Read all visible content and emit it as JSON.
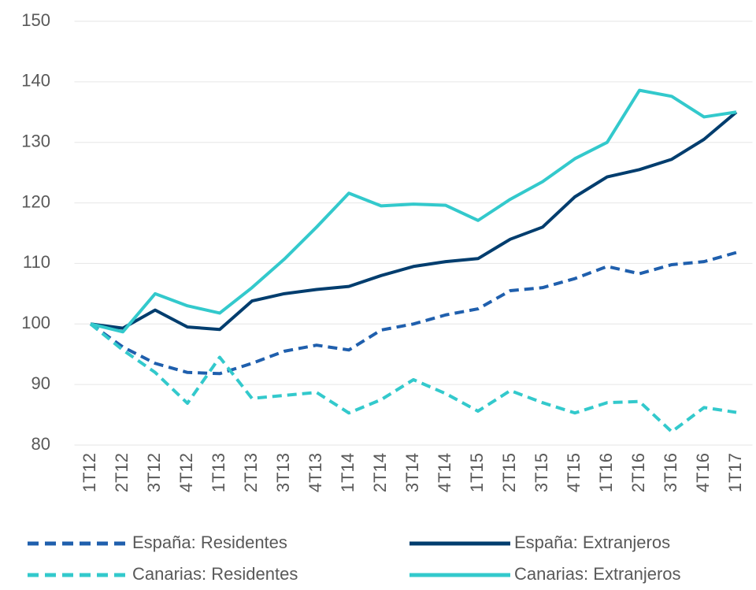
{
  "chart_data": {
    "type": "line",
    "categories": [
      "1T12",
      "2T12",
      "3T12",
      "4T12",
      "1T13",
      "2T13",
      "3T13",
      "4T13",
      "1T14",
      "2T14",
      "3T14",
      "4T14",
      "1T15",
      "2T15",
      "3T15",
      "4T15",
      "1T16",
      "2T16",
      "3T16",
      "4T16",
      "1T17"
    ],
    "series": [
      {
        "name": "España: Residentes",
        "color": "#1f5fad",
        "dashed": true,
        "values": [
          100,
          96.2,
          93.5,
          92,
          91.8,
          93.5,
          95.5,
          96.5,
          95.7,
          99,
          100,
          101.5,
          102.5,
          105.5,
          106,
          107.5,
          109.5,
          108.3,
          109.8,
          110.3,
          111.8
        ]
      },
      {
        "name": "España: Extranjeros",
        "color": "#003d6e",
        "dashed": false,
        "values": [
          100,
          99.3,
          102.3,
          99.5,
          99.1,
          103.8,
          105,
          105.7,
          106.2,
          108,
          109.5,
          110.3,
          110.8,
          114,
          116,
          121,
          124.3,
          125.5,
          127.2,
          130.5,
          135
        ]
      },
      {
        "name": "Canarias: Residentes",
        "color": "#33c9cc",
        "dashed": true,
        "values": [
          100,
          95.7,
          92,
          86.9,
          94.5,
          87.7,
          88.2,
          88.7,
          85.3,
          87.5,
          90.8,
          88.5,
          85.6,
          89,
          87,
          85.3,
          87,
          87.2,
          82.2,
          86.2,
          85.4
        ]
      },
      {
        "name": "Canarias: Extranjeros",
        "color": "#33c9cc",
        "dashed": false,
        "values": [
          100,
          98.7,
          105,
          103,
          101.8,
          106,
          110.7,
          116,
          121.6,
          119.5,
          119.8,
          119.6,
          117.1,
          120.6,
          123.5,
          127.3,
          130,
          138.6,
          137.6,
          134.2,
          135
        ]
      }
    ],
    "ylim": [
      80,
      150
    ],
    "yticks": [
      80,
      90,
      100,
      110,
      120,
      130,
      140,
      150
    ],
    "grid": true,
    "legend": "bottom"
  }
}
